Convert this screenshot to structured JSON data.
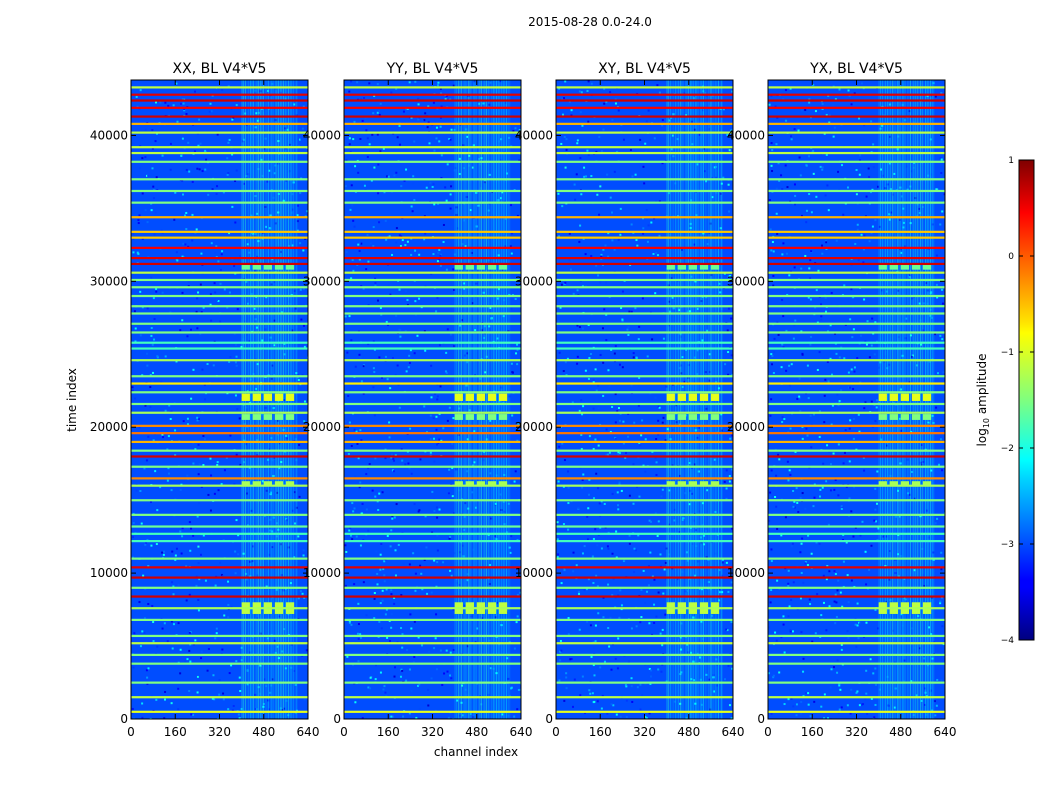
{
  "chart_data": {
    "type": "heatmap",
    "suptitle": "2015-08-28 0.0-24.0",
    "xlabel": "channel index",
    "ylabel": "time index",
    "xlim": [
      0,
      640
    ],
    "ylim": [
      0,
      43800
    ],
    "x_ticks": [
      0,
      160,
      320,
      480,
      640
    ],
    "y_ticks": [
      0,
      10000,
      20000,
      30000,
      40000
    ],
    "panels": [
      {
        "title": "XX, BL V4*V5",
        "pol": "XX"
      },
      {
        "title": "YY, BL V4*V5",
        "pol": "YY"
      },
      {
        "title": "XY, BL V4*V5",
        "pol": "XY"
      },
      {
        "title": "YX, BL V4*V5",
        "pol": "YX"
      }
    ],
    "colorbar": {
      "label": "log₁₀ amplitude",
      "label_main": "log",
      "label_sub": "10",
      "label_tail": " amplitude",
      "range": [
        -4,
        1
      ],
      "ticks": [
        1,
        0,
        -1,
        -2,
        -3,
        -4
      ],
      "tick_labels": [
        "1",
        "0",
        "−1",
        "−2",
        "−3",
        "−4"
      ],
      "colormap": "jet"
    },
    "background_level": -3.0,
    "rfi_channel_range": [
      400,
      600
    ],
    "rfi_channel_level": -2.3,
    "horizontal_flagged_rows": [
      {
        "time": 500,
        "level": -1.0
      },
      {
        "time": 1500,
        "level": -1.2
      },
      {
        "time": 2500,
        "level": -1.5
      },
      {
        "time": 3800,
        "level": -1.5
      },
      {
        "time": 4400,
        "level": -1.5
      },
      {
        "time": 5200,
        "level": -1.2
      },
      {
        "time": 5700,
        "level": -1.5
      },
      {
        "time": 6800,
        "level": -1.5
      },
      {
        "time": 7600,
        "level": -1.3
      },
      {
        "time": 8400,
        "level": 0.6
      },
      {
        "time": 9000,
        "level": -1.5
      },
      {
        "time": 9700,
        "level": 0.6
      },
      {
        "time": 10400,
        "level": 0.5
      },
      {
        "time": 11000,
        "level": -1.5
      },
      {
        "time": 12200,
        "level": -1.8
      },
      {
        "time": 12700,
        "level": -1.8
      },
      {
        "time": 13200,
        "level": -1.6
      },
      {
        "time": 14000,
        "level": -1.5
      },
      {
        "time": 15000,
        "level": -1.5
      },
      {
        "time": 16000,
        "level": -1.3
      },
      {
        "time": 16500,
        "level": -0.3
      },
      {
        "time": 17300,
        "level": -1.5
      },
      {
        "time": 18000,
        "level": 0.6
      },
      {
        "time": 18400,
        "level": -1.5
      },
      {
        "time": 19000,
        "level": -0.5
      },
      {
        "time": 19600,
        "level": -0.2
      },
      {
        "time": 20100,
        "level": -0.3
      },
      {
        "time": 21000,
        "level": -1.3
      },
      {
        "time": 21600,
        "level": -1.5
      },
      {
        "time": 22400,
        "level": -1.5
      },
      {
        "time": 23000,
        "level": -0.8
      },
      {
        "time": 23500,
        "level": -1.5
      },
      {
        "time": 24600,
        "level": -1.3
      },
      {
        "time": 25400,
        "level": -1.8
      },
      {
        "time": 25800,
        "level": -1.8
      },
      {
        "time": 26500,
        "level": -1.5
      },
      {
        "time": 27100,
        "level": -1.5
      },
      {
        "time": 27800,
        "level": -1.5
      },
      {
        "time": 28300,
        "level": -1.5
      },
      {
        "time": 29000,
        "level": -1.5
      },
      {
        "time": 29600,
        "level": -1.5
      },
      {
        "time": 30100,
        "level": -1.5
      },
      {
        "time": 30600,
        "level": -1.2
      },
      {
        "time": 31200,
        "level": 0.6
      },
      {
        "time": 31600,
        "level": 0.5
      },
      {
        "time": 32300,
        "level": 0.4
      },
      {
        "time": 33000,
        "level": -0.6
      },
      {
        "time": 33400,
        "level": -0.6
      },
      {
        "time": 34400,
        "level": -0.5
      },
      {
        "time": 35400,
        "level": -1.5
      },
      {
        "time": 36200,
        "level": -1.5
      },
      {
        "time": 37000,
        "level": -1.5
      },
      {
        "time": 38200,
        "level": -1.5
      },
      {
        "time": 38800,
        "level": -1.2
      },
      {
        "time": 39200,
        "level": -1.2
      },
      {
        "time": 40200,
        "level": -1.2
      },
      {
        "time": 40800,
        "level": -0.5
      },
      {
        "time": 41300,
        "level": 0.6
      },
      {
        "time": 41900,
        "level": 0.4
      },
      {
        "time": 42400,
        "level": 0.6
      },
      {
        "time": 42800,
        "level": 0.5
      },
      {
        "time": 43300,
        "level": -1.2
      }
    ],
    "bright_blocks": [
      {
        "channels": [
          400,
          600
        ],
        "time": [
          21800,
          22300
        ],
        "level": -1.0
      },
      {
        "channels": [
          400,
          600
        ],
        "time": [
          7200,
          8000
        ],
        "level": -1.2
      },
      {
        "channels": [
          400,
          600
        ],
        "time": [
          16000,
          16300
        ],
        "level": -1.3
      },
      {
        "channels": [
          400,
          600
        ],
        "time": [
          20500,
          20900
        ],
        "level": -1.5
      },
      {
        "channels": [
          400,
          600
        ],
        "time": [
          30800,
          31200
        ],
        "level": -1.6
      }
    ]
  }
}
